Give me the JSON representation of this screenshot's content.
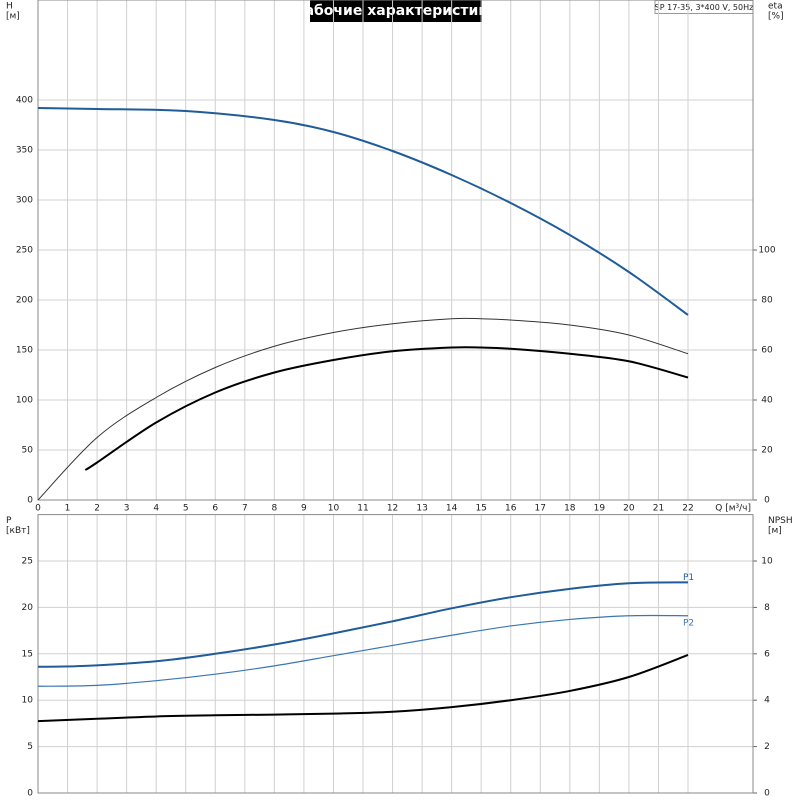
{
  "chart_data": [
    {
      "type": "line",
      "title": "Рабочие характеристики",
      "annotation": "SP 17-35, 3*400 V, 50Hz",
      "ylabel": "H",
      "yunit": "[м]",
      "y2label": "eta",
      "y2unit": "[%]",
      "xlabel": "Q [м³/ч]",
      "xlim": [
        0,
        24.2
      ],
      "xticks": [
        0,
        1,
        2,
        3,
        4,
        5,
        6,
        7,
        8,
        9,
        10,
        11,
        12,
        13,
        14,
        15,
        16,
        17,
        18,
        19,
        20,
        21,
        22
      ],
      "ylim": [
        0,
        500
      ],
      "yticks": [
        0,
        50,
        100,
        150,
        200,
        250,
        300,
        350,
        400
      ],
      "y2lim": [
        0,
        200
      ],
      "y2ticks": [
        0,
        20,
        40,
        60,
        80,
        100
      ],
      "grid": true,
      "series": [
        {
          "color": "#1f5c99",
          "width": 2,
          "x": [
            0,
            2,
            5,
            8,
            10,
            12,
            14,
            16,
            18,
            20,
            22
          ],
          "values": [
            392,
            391,
            389,
            380,
            368,
            349,
            325,
            297,
            265,
            228,
            185
          ]
        },
        {
          "color": "#333333",
          "width": 1,
          "axis": "y2",
          "x": [
            0,
            2,
            4,
            6,
            8,
            10,
            12,
            14,
            15,
            16,
            18,
            20,
            22
          ],
          "values": [
            0,
            25,
            41,
            53,
            61.5,
            67,
            70.5,
            72.5,
            72.5,
            72,
            70,
            66,
            58.5
          ]
        },
        {
          "color": "#000000",
          "width": 2,
          "axis": "y2",
          "x": [
            1.6,
            2,
            4,
            6,
            8,
            10,
            12,
            14,
            15,
            16,
            18,
            20,
            22
          ],
          "values": [
            12,
            15,
            31,
            43,
            51,
            56,
            59.5,
            61,
            61,
            60.5,
            58.5,
            55.5,
            49
          ]
        }
      ]
    },
    {
      "type": "line",
      "ylabel": "P",
      "yunit": "[кВт]",
      "y2label": "NPSH",
      "y2unit": "[м]",
      "xlim": [
        0,
        24.2
      ],
      "ylim": [
        0,
        30
      ],
      "yticks": [
        0,
        5,
        10,
        15,
        20,
        25
      ],
      "y2lim": [
        0,
        12
      ],
      "y2ticks": [
        0,
        2,
        4,
        6,
        8,
        10
      ],
      "grid": true,
      "series": [
        {
          "name": "P1",
          "color": "#1f5c99",
          "width": 2,
          "x": [
            0,
            1.6,
            4,
            6,
            8,
            10,
            12,
            14,
            16,
            18,
            20,
            22
          ],
          "values": [
            13.6,
            13.7,
            14.2,
            15,
            16,
            17.2,
            18.5,
            19.9,
            21.1,
            22,
            22.6,
            22.7
          ]
        },
        {
          "name": "P2",
          "color": "#3a76b3",
          "width": 1.2,
          "x": [
            0,
            2,
            4,
            6,
            8,
            10,
            12,
            14,
            16,
            18,
            20,
            22
          ],
          "values": [
            11.5,
            11.6,
            12.1,
            12.8,
            13.7,
            14.8,
            15.9,
            17,
            18,
            18.7,
            19.1,
            19.1
          ]
        },
        {
          "color": "#000000",
          "width": 2,
          "axis": "y2",
          "x": [
            0,
            2,
            4,
            6,
            8,
            10,
            12,
            14,
            16,
            18,
            20,
            22
          ],
          "values": [
            3.1,
            3.2,
            3.3,
            3.35,
            3.38,
            3.42,
            3.5,
            3.7,
            4,
            4.4,
            5,
            5.95
          ]
        }
      ]
    }
  ]
}
